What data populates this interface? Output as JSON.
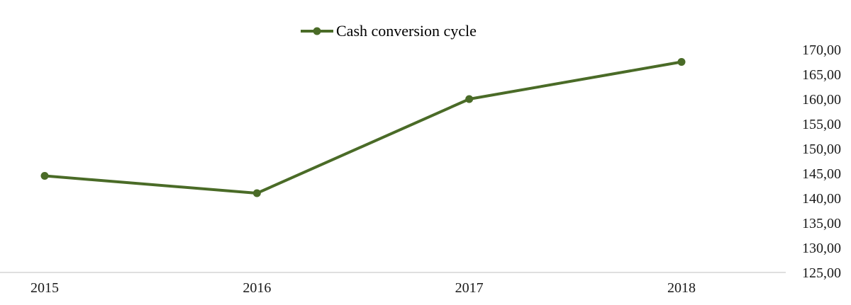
{
  "chart_data": {
    "type": "line",
    "categories": [
      "2015",
      "2016",
      "2017",
      "2018"
    ],
    "series": [
      {
        "name": "Cash conversion cycle",
        "values": [
          144.5,
          141.0,
          160.0,
          167.5
        ],
        "color": "#4a6b27"
      }
    ],
    "yaxis_position": "right",
    "ylim": [
      125,
      170
    ],
    "yticks": [
      125,
      130,
      135,
      140,
      145,
      150,
      155,
      160,
      165,
      170
    ],
    "ytick_labels": [
      "125,00",
      "130,00",
      "135,00",
      "140,00",
      "145,00",
      "150,00",
      "155,00",
      "160,00",
      "165,00",
      "170,00"
    ],
    "legend_position": "top-center",
    "grid": false
  }
}
